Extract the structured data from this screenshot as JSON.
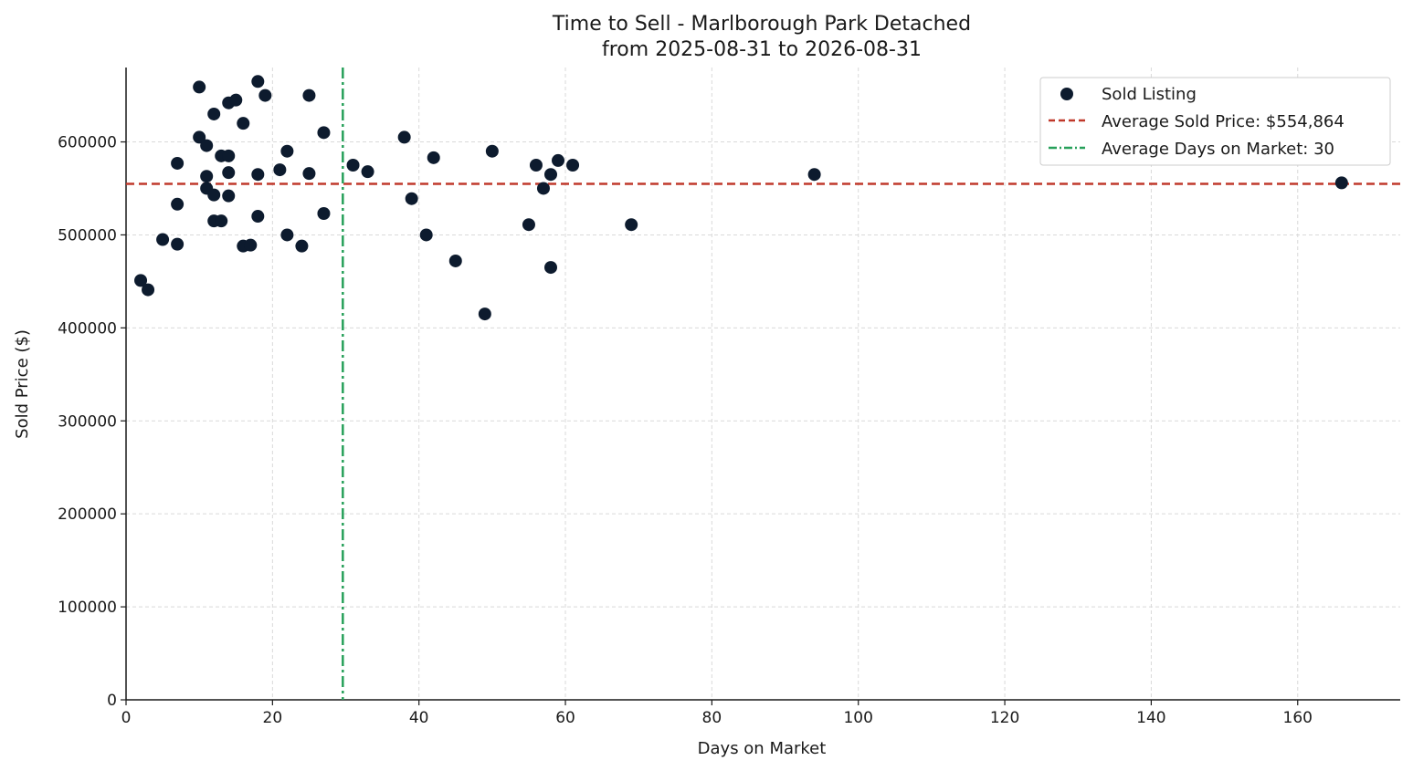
{
  "chart_data": {
    "type": "scatter",
    "title": "Time to Sell - Marlborough Park Detached",
    "subtitle": "from 2025-08-31 to 2026-08-31",
    "xlabel": "Days on Market",
    "ylabel": "Sold Price ($)",
    "xlim": [
      0,
      174
    ],
    "ylim": [
      0,
      680000
    ],
    "x_ticks": [
      0,
      20,
      40,
      60,
      80,
      100,
      120,
      140,
      160
    ],
    "y_ticks": [
      0,
      100000,
      200000,
      300000,
      400000,
      500000,
      600000
    ],
    "grid": true,
    "legend_position": "top-right",
    "colors": {
      "points": "#0d1b2e",
      "avg_price": "#c0392b",
      "avg_days": "#27a05a"
    },
    "series": [
      {
        "name": "Sold Listing",
        "points": [
          {
            "x": 2,
            "y": 451000
          },
          {
            "x": 3,
            "y": 441000
          },
          {
            "x": 5,
            "y": 495000
          },
          {
            "x": 7,
            "y": 577000
          },
          {
            "x": 7,
            "y": 533000
          },
          {
            "x": 7,
            "y": 490000
          },
          {
            "x": 10,
            "y": 659000
          },
          {
            "x": 10,
            "y": 605000
          },
          {
            "x": 11,
            "y": 596000
          },
          {
            "x": 11,
            "y": 563000
          },
          {
            "x": 11,
            "y": 550000
          },
          {
            "x": 12,
            "y": 630000
          },
          {
            "x": 12,
            "y": 543000
          },
          {
            "x": 12,
            "y": 515000
          },
          {
            "x": 13,
            "y": 585000
          },
          {
            "x": 13,
            "y": 515000
          },
          {
            "x": 14,
            "y": 642000
          },
          {
            "x": 14,
            "y": 585000
          },
          {
            "x": 14,
            "y": 567000
          },
          {
            "x": 14,
            "y": 542000
          },
          {
            "x": 15,
            "y": 645000
          },
          {
            "x": 16,
            "y": 620000
          },
          {
            "x": 16,
            "y": 488000
          },
          {
            "x": 17,
            "y": 489000
          },
          {
            "x": 18,
            "y": 665000
          },
          {
            "x": 18,
            "y": 565000
          },
          {
            "x": 18,
            "y": 520000
          },
          {
            "x": 19,
            "y": 650000
          },
          {
            "x": 21,
            "y": 570000
          },
          {
            "x": 22,
            "y": 590000
          },
          {
            "x": 22,
            "y": 500000
          },
          {
            "x": 24,
            "y": 488000
          },
          {
            "x": 25,
            "y": 650000
          },
          {
            "x": 25,
            "y": 566000
          },
          {
            "x": 27,
            "y": 610000
          },
          {
            "x": 27,
            "y": 523000
          },
          {
            "x": 31,
            "y": 575000
          },
          {
            "x": 33,
            "y": 568000
          },
          {
            "x": 38,
            "y": 605000
          },
          {
            "x": 39,
            "y": 539000
          },
          {
            "x": 41,
            "y": 500000
          },
          {
            "x": 42,
            "y": 583000
          },
          {
            "x": 45,
            "y": 472000
          },
          {
            "x": 49,
            "y": 415000
          },
          {
            "x": 50,
            "y": 590000
          },
          {
            "x": 55,
            "y": 511000
          },
          {
            "x": 56,
            "y": 575000
          },
          {
            "x": 57,
            "y": 550000
          },
          {
            "x": 58,
            "y": 565000
          },
          {
            "x": 58,
            "y": 465000
          },
          {
            "x": 59,
            "y": 580000
          },
          {
            "x": 61,
            "y": 575000
          },
          {
            "x": 69,
            "y": 511000
          },
          {
            "x": 94,
            "y": 565000
          },
          {
            "x": 166,
            "y": 556000
          }
        ]
      }
    ],
    "reference_lines": [
      {
        "name": "Average Sold Price: $554,864",
        "orientation": "horizontal",
        "value": 554864,
        "style": "dashed"
      },
      {
        "name": "Average Days on Market: 30",
        "orientation": "vertical",
        "value": 29.6,
        "style": "dashdot"
      }
    ]
  }
}
